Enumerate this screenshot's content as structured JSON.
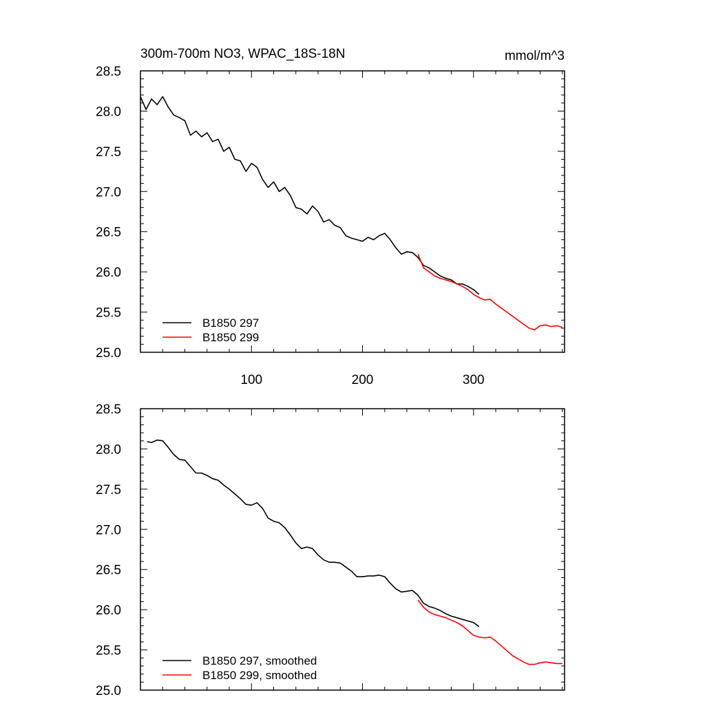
{
  "header": {
    "title": "300m-700m NO3, WPAC_18S-18N",
    "units": "mmol/m^3"
  },
  "chart_data": [
    {
      "type": "line",
      "xlim": [
        0,
        382
      ],
      "ylim": [
        25.0,
        28.5
      ],
      "xticks": [
        100,
        200,
        300
      ],
      "xtick_labels": [
        "100",
        "200",
        "300"
      ],
      "yticks": [
        25.0,
        25.5,
        26.0,
        26.5,
        27.0,
        27.5,
        28.0,
        28.5
      ],
      "ytick_labels": [
        "25.0",
        "25.5",
        "26.0",
        "26.5",
        "27.0",
        "27.5",
        "28.0",
        "28.5"
      ],
      "legend_position": "bottom-left",
      "series": [
        {
          "name": "B1850 297",
          "color": "#000000",
          "x": [
            0,
            5,
            10,
            15,
            20,
            25,
            30,
            35,
            40,
            45,
            50,
            55,
            60,
            65,
            70,
            75,
            80,
            85,
            90,
            95,
            100,
            105,
            110,
            115,
            120,
            125,
            130,
            135,
            140,
            145,
            150,
            155,
            160,
            165,
            170,
            175,
            180,
            185,
            190,
            195,
            200,
            205,
            210,
            215,
            220,
            225,
            230,
            235,
            240,
            245,
            250,
            255,
            260,
            265,
            270,
            275,
            280,
            285,
            290,
            295,
            300,
            305
          ],
          "y": [
            28.18,
            28.02,
            28.15,
            28.08,
            28.18,
            28.05,
            27.95,
            27.92,
            27.88,
            27.7,
            27.75,
            27.68,
            27.73,
            27.62,
            27.65,
            27.5,
            27.55,
            27.4,
            27.38,
            27.25,
            27.35,
            27.3,
            27.15,
            27.05,
            27.12,
            27.0,
            27.05,
            26.95,
            26.8,
            26.78,
            26.72,
            26.82,
            26.75,
            26.62,
            26.65,
            26.58,
            26.55,
            26.45,
            26.42,
            26.4,
            26.38,
            26.43,
            26.4,
            26.45,
            26.48,
            26.4,
            26.3,
            26.22,
            26.25,
            26.24,
            26.18,
            26.08,
            26.05,
            26.0,
            25.95,
            25.92,
            25.9,
            25.85,
            25.85,
            25.82,
            25.78,
            25.72
          ]
        },
        {
          "name": "B1850 299",
          "color": "#ff0000",
          "x": [
            250,
            255,
            260,
            265,
            270,
            275,
            280,
            285,
            290,
            295,
            300,
            305,
            310,
            315,
            320,
            325,
            330,
            335,
            340,
            345,
            350,
            355,
            360,
            365,
            370,
            375,
            380
          ],
          "y": [
            26.22,
            26.05,
            26.0,
            25.95,
            25.92,
            25.9,
            25.88,
            25.85,
            25.82,
            25.78,
            25.72,
            25.68,
            25.65,
            25.66,
            25.6,
            25.55,
            25.5,
            25.45,
            25.4,
            25.35,
            25.3,
            25.28,
            25.33,
            25.34,
            25.32,
            25.33,
            25.31
          ]
        }
      ]
    },
    {
      "type": "line",
      "xlim": [
        0,
        382
      ],
      "ylim": [
        25.0,
        28.5
      ],
      "xticks": [
        100,
        200,
        300
      ],
      "yticks": [
        25.0,
        25.5,
        26.0,
        26.5,
        27.0,
        27.5,
        28.0,
        28.5
      ],
      "ytick_labels": [
        "25.0",
        "25.5",
        "26.0",
        "26.5",
        "27.0",
        "27.5",
        "28.0",
        "28.5"
      ],
      "legend_position": "bottom-left",
      "series": [
        {
          "name": "B1850 297, smoothed",
          "color": "#000000",
          "x": [
            6,
            10,
            15,
            20,
            25,
            30,
            35,
            40,
            45,
            50,
            55,
            60,
            65,
            70,
            75,
            80,
            85,
            90,
            95,
            100,
            105,
            110,
            115,
            120,
            125,
            130,
            135,
            140,
            145,
            150,
            155,
            160,
            165,
            170,
            175,
            180,
            185,
            190,
            195,
            200,
            205,
            210,
            215,
            220,
            225,
            230,
            235,
            240,
            245,
            250,
            255,
            260,
            265,
            270,
            275,
            280,
            285,
            290,
            295,
            300,
            305
          ],
          "y": [
            28.09,
            28.08,
            28.11,
            28.1,
            28.02,
            27.93,
            27.87,
            27.86,
            27.78,
            27.7,
            27.7,
            27.67,
            27.63,
            27.61,
            27.55,
            27.5,
            27.44,
            27.38,
            27.31,
            27.3,
            27.33,
            27.26,
            27.14,
            27.1,
            27.08,
            27.02,
            26.93,
            26.83,
            26.76,
            26.78,
            26.76,
            26.68,
            26.62,
            26.59,
            26.59,
            26.58,
            26.53,
            26.48,
            26.41,
            26.41,
            26.42,
            26.42,
            26.43,
            26.41,
            26.33,
            26.26,
            26.22,
            26.23,
            26.24,
            26.18,
            26.08,
            26.04,
            26.02,
            25.99,
            25.95,
            25.92,
            25.9,
            25.88,
            25.86,
            25.84,
            25.79
          ]
        },
        {
          "name": "B1850 299, smoothed",
          "color": "#ff0000",
          "x": [
            250,
            255,
            260,
            265,
            270,
            275,
            280,
            285,
            290,
            295,
            300,
            305,
            310,
            315,
            320,
            325,
            330,
            335,
            340,
            345,
            350,
            355,
            360,
            365,
            370,
            375,
            380
          ],
          "y": [
            26.12,
            26.03,
            25.97,
            25.94,
            25.92,
            25.9,
            25.87,
            25.84,
            25.8,
            25.74,
            25.68,
            25.66,
            25.65,
            25.66,
            25.61,
            25.55,
            25.49,
            25.43,
            25.39,
            25.35,
            25.32,
            25.32,
            25.34,
            25.35,
            25.34,
            25.33,
            25.33
          ]
        }
      ]
    }
  ]
}
